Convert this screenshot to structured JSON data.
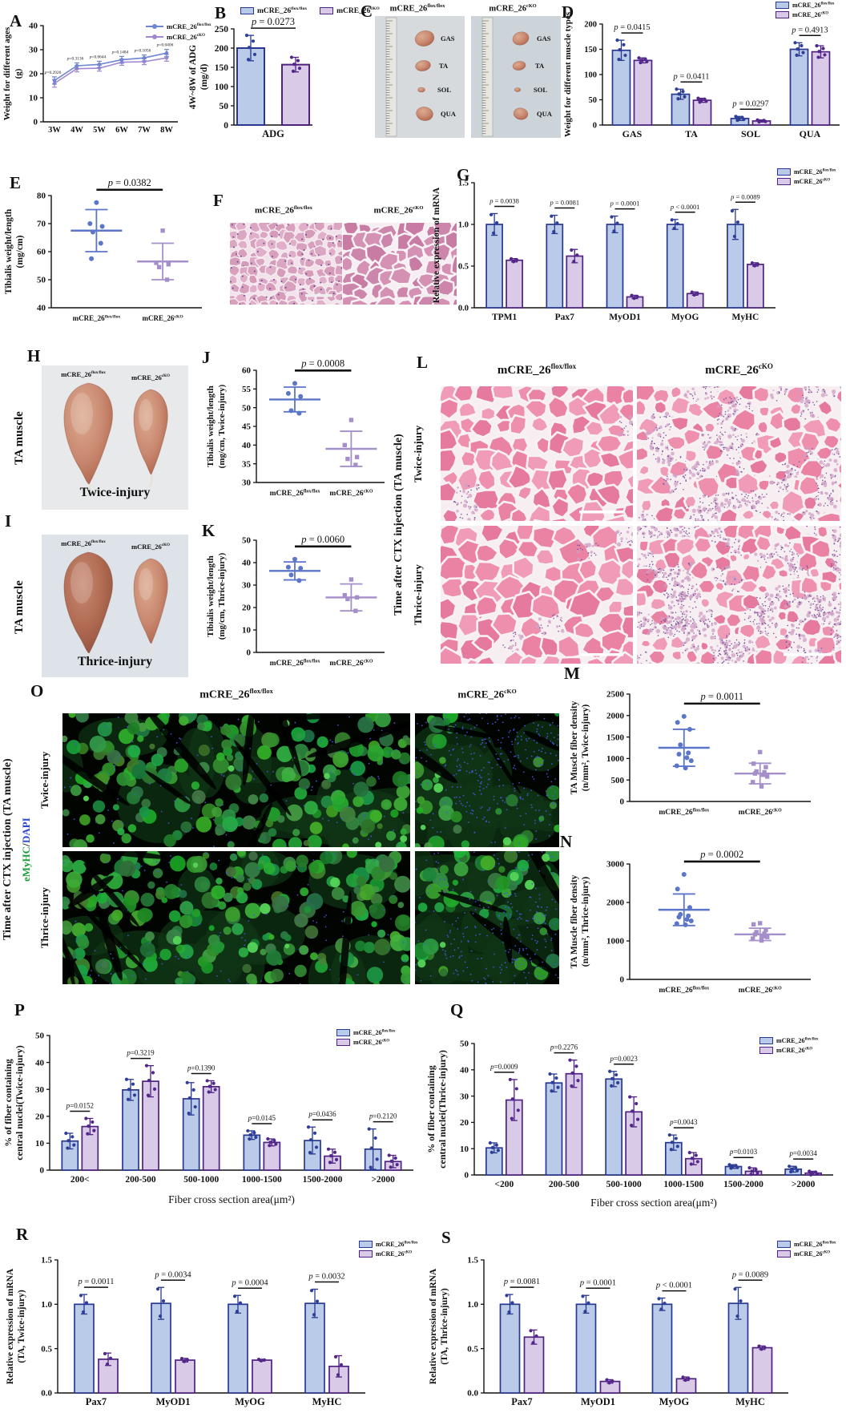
{
  "colors": {
    "flox_fill": "#b9cbe8",
    "flox_stroke": "#283891",
    "flox_dot": "#2e3f97",
    "cko_fill": "#d9cbe8",
    "cko_stroke": "#4f2180",
    "cko_dot": "#53268c",
    "line_flox": "#6d86cf",
    "line_cko": "#a287d1",
    "scatter_flox": "#5b76c9",
    "scatter_cko": "#a58fcb",
    "stain_green": "#1d9e3a",
    "stain_blue": "#2b46cf"
  },
  "legend": {
    "flox": {
      "base": "mCRE_26",
      "sup": "flox/flox"
    },
    "cko": {
      "base": "mCRE_26",
      "sup": "cKO"
    }
  },
  "panels": {
    "a": {
      "letter": "A"
    },
    "b": {
      "letter": "B"
    },
    "c": {
      "letter": "C",
      "muscles": [
        "GAS",
        "TA",
        "SOL",
        "QUA"
      ]
    },
    "d": {
      "letter": "D"
    },
    "e": {
      "letter": "E"
    },
    "f": {
      "letter": "F"
    },
    "g": {
      "letter": "G"
    },
    "h": {
      "letter": "H",
      "side": "TA muscle",
      "caption": "Twice-injury"
    },
    "i": {
      "letter": "I",
      "side": "TA muscle",
      "caption": "Thrice-injury"
    },
    "j": {
      "letter": "J"
    },
    "k": {
      "letter": "K"
    },
    "l": {
      "letter": "L",
      "side": "Time after CTX injection (TA muscle)",
      "row1": "Twice-injury",
      "row2": "Thrice-injury"
    },
    "m": {
      "letter": "M"
    },
    "n": {
      "letter": "N"
    },
    "o": {
      "letter": "O",
      "side": "Time after CTX injection (TA muscle)",
      "stain_green": "eMyHC",
      "stain_sep": "/",
      "stain_blue": "DAPI",
      "row1": "Twice-injury",
      "row2": "Thrice-injury"
    },
    "p": {
      "letter": "P"
    },
    "q": {
      "letter": "Q"
    },
    "r": {
      "letter": "R"
    },
    "s": {
      "letter": "S"
    }
  },
  "chart_data": [
    {
      "id": "A",
      "type": "line",
      "title": "",
      "ylabel": [
        "Weight for different ages",
        "(g)"
      ],
      "x": [
        "3W",
        "4W",
        "5W",
        "6W",
        "7W",
        "8W"
      ],
      "ylim": [
        0,
        40
      ],
      "yticks": [
        0,
        10,
        20,
        30,
        40
      ],
      "series": [
        {
          "name": "mCRE_26flox/flox",
          "values": [
            17.2,
            23.3,
            23.9,
            25.8,
            26.6,
            28.6
          ],
          "err": [
            1.5,
            1.2,
            1.3,
            1.4,
            1.2,
            1.5
          ]
        },
        {
          "name": "mCRE_26cKO",
          "values": [
            16.0,
            22.1,
            22.3,
            24.8,
            25.0,
            26.6
          ],
          "err": [
            1.6,
            1.3,
            1.2,
            1.3,
            1.2,
            1.4
          ]
        }
      ],
      "p_values": [
        "p=0.2926",
        "p=0.3136",
        "p=0.0644",
        "p=0.1484",
        "p=0.1056",
        "p=0.0406"
      ]
    },
    {
      "id": "B",
      "type": "bar",
      "ylabel": [
        "4W~8W of ADG",
        "(mg/d)"
      ],
      "categories": [
        "ADG"
      ],
      "ylim": [
        0,
        250
      ],
      "yticks": [
        0,
        50,
        100,
        150,
        200,
        250
      ],
      "series": [
        {
          "name": "mCRE_26flox/flox",
          "values": [
            200
          ],
          "err": [
            33
          ]
        },
        {
          "name": "mCRE_26cKO",
          "values": [
            157
          ],
          "err": [
            19
          ]
        }
      ],
      "p_values": [
        "p = 0.0273"
      ]
    },
    {
      "id": "D",
      "type": "bar",
      "ylabel": [
        "Weight for different muscle types"
      ],
      "categories": [
        "GAS",
        "TA",
        "SOL",
        "QUA"
      ],
      "ylim": [
        0,
        200
      ],
      "yticks": [
        0,
        50,
        100,
        150,
        200
      ],
      "series": [
        {
          "name": "mCRE_26flox/flox",
          "values": [
            148,
            61,
            13,
            150
          ],
          "err": [
            20,
            10,
            4,
            13
          ]
        },
        {
          "name": "mCRE_26cKO",
          "values": [
            128,
            49,
            8,
            145
          ],
          "err": [
            5,
            4,
            2,
            12
          ]
        }
      ],
      "p_values": [
        "p = 0.0415",
        "p = 0.0411",
        "p = 0.0297",
        "p = 0.4913"
      ]
    },
    {
      "id": "E",
      "type": "scatter",
      "ylabel": [
        "Tibialis weight/length",
        "(mg/cm)"
      ],
      "ylim": [
        40,
        80
      ],
      "yticks": [
        40,
        50,
        60,
        70,
        80
      ],
      "p": "p = 0.0382",
      "groups": [
        {
          "name": "mCRE_26flox/flox",
          "mean": 67.5,
          "sd": 7.5,
          "points": [
            77.5,
            70,
            69,
            67,
            63,
            57.5
          ]
        },
        {
          "name": "mCRE_26cKO",
          "mean": 56.5,
          "sd": 6.5,
          "points": [
            67.5,
            56,
            55.5,
            54.5,
            50
          ]
        }
      ]
    },
    {
      "id": "G",
      "type": "bar",
      "ylabel": [
        "Relative expression of mRNA"
      ],
      "categories": [
        "TPM1",
        "Pax7",
        "MyOD1",
        "MyOG",
        "MyHC"
      ],
      "ylim": [
        0,
        1.5
      ],
      "yticks": [
        0,
        0.5,
        1,
        1.5
      ],
      "ytick_decimals": 1,
      "series": [
        {
          "name": "mCRE_26flox/flox",
          "values": [
            1.0,
            1.0,
            1.0,
            1.0,
            1.0
          ],
          "err": [
            0.13,
            0.11,
            0.1,
            0.06,
            0.18
          ]
        },
        {
          "name": "mCRE_26cKO",
          "values": [
            0.57,
            0.62,
            0.13,
            0.17,
            0.52
          ],
          "err": [
            0.02,
            0.08,
            0.02,
            0.02,
            0.02
          ]
        }
      ],
      "p_values": [
        "p = 0.0038",
        "p = 0.0081",
        "p = 0.0001",
        "p < 0.0001",
        "p = 0.0089"
      ]
    },
    {
      "id": "J",
      "type": "scatter",
      "ylabel": [
        "Tibialis weight/length",
        "(mg/cm, Twice-injury)"
      ],
      "ylim": [
        30,
        60
      ],
      "yticks": [
        30,
        35,
        40,
        45,
        50,
        55,
        60
      ],
      "p": "p = 0.0008",
      "groups": [
        {
          "name": "mCRE_26flox/flox",
          "mean": 52.2,
          "sd": 3.3,
          "points": [
            56.5,
            53.8,
            53,
            49.2,
            48.5
          ]
        },
        {
          "name": "mCRE_26cKO",
          "mean": 39,
          "sd": 4.7,
          "points": [
            46.7,
            40,
            36.8,
            36.3,
            34.7
          ]
        }
      ]
    },
    {
      "id": "K",
      "type": "scatter",
      "ylabel": [
        "Tibialis weight/length",
        "(mg/cm, Thrice-injury)"
      ],
      "ylim": [
        0,
        50
      ],
      "yticks": [
        0,
        10,
        20,
        30,
        40,
        50
      ],
      "p": "p = 0.0060",
      "groups": [
        {
          "name": "mCRE_26flox/flox",
          "mean": 36.3,
          "sd": 4,
          "points": [
            41.5,
            38,
            37.5,
            34.5,
            32
          ]
        },
        {
          "name": "mCRE_26cKO",
          "mean": 24.5,
          "sd": 6,
          "points": [
            32.5,
            25.5,
            24.5,
            23.8,
            18.5
          ]
        }
      ]
    },
    {
      "id": "M",
      "type": "scatter",
      "ylabel": [
        "TA Muscle fiber density",
        "(n/mm², Twice-injury)"
      ],
      "ylim": [
        0,
        2500
      ],
      "yticks": [
        0,
        500,
        1000,
        1500,
        2000,
        2500
      ],
      "p": "p = 0.0011",
      "groups": [
        {
          "name": "mCRE_26flox/flox",
          "mean": 1250,
          "sd": 430,
          "points": [
            1980,
            1840,
            1680,
            1320,
            1130,
            1100,
            1020,
            950,
            830,
            780
          ]
        },
        {
          "name": "mCRE_26cKO",
          "mean": 650,
          "sd": 240,
          "points": [
            1150,
            880,
            800,
            700,
            680,
            650,
            620,
            580,
            450,
            350
          ]
        }
      ]
    },
    {
      "id": "N",
      "type": "scatter",
      "ylabel": [
        "TA Muscle fiber density",
        "(n/mm², Thrice-injury)"
      ],
      "ylim": [
        0,
        3000
      ],
      "yticks": [
        0,
        1000,
        2000,
        3000
      ],
      "p": "p = 0.0002",
      "groups": [
        {
          "name": "mCRE_26flox/flox",
          "mean": 1810,
          "sd": 410,
          "points": [
            2730,
            2350,
            1870,
            1690,
            1650,
            1620,
            1560,
            1520,
            1450,
            1420
          ]
        },
        {
          "name": "mCRE_26cKO",
          "mean": 1170,
          "sd": 160,
          "points": [
            1460,
            1430,
            1280,
            1230,
            1190,
            1170,
            1120,
            1100,
            1060,
            1010
          ]
        }
      ]
    },
    {
      "id": "P",
      "type": "bar",
      "ylabel": [
        "% of fiber containing",
        "central nuclei(Twice-injury)"
      ],
      "xlabel": "Fiber cross section area(μm²)",
      "categories": [
        "200<",
        "200-500",
        "500-1000",
        "1000-1500",
        "1500-2000",
        ">2000"
      ],
      "ylim": [
        0,
        50
      ],
      "yticks": [
        0,
        10,
        20,
        30,
        40,
        50
      ],
      "series": [
        {
          "name": "mCRE_26flox/flox",
          "values": [
            10.8,
            29.8,
            26.5,
            13,
            11,
            7.8
          ],
          "err": [
            2.9,
            3.9,
            6,
            1.6,
            5,
            7.5
          ]
        },
        {
          "name": "mCRE_26cKO",
          "values": [
            16.2,
            33,
            31,
            10.3,
            5.2,
            3.2
          ],
          "err": [
            3,
            5.8,
            2.2,
            1.3,
            2.6,
            2.3
          ]
        }
      ],
      "p_values": [
        "p=0.0152",
        "p=0.3219",
        "p=0.1390",
        "p=0.0145",
        "p=0.0436",
        "p=0.2120"
      ]
    },
    {
      "id": "Q",
      "type": "bar",
      "ylabel": [
        "% of fiber containing",
        "central nuclei(Thrice-injury)"
      ],
      "xlabel": "Fiber cross section area(μm²)",
      "categories": [
        "<200",
        "200-500",
        "500-1000",
        "1000-1500",
        "1500-2000",
        ">2000"
      ],
      "ylim": [
        0,
        50
      ],
      "yticks": [
        0,
        10,
        20,
        30,
        40,
        50
      ],
      "series": [
        {
          "name": "mCRE_26flox/flox",
          "values": [
            10.3,
            35,
            36.5,
            12.3,
            3.2,
            2.2
          ],
          "err": [
            1.9,
            3.4,
            2.9,
            2.9,
            0.7,
            1.1
          ]
        },
        {
          "name": "mCRE_26cKO",
          "values": [
            28.5,
            38.5,
            24,
            6.2,
            1.4,
            0.7
          ],
          "err": [
            7.8,
            5.2,
            5.7,
            2.3,
            1.3,
            0.7
          ]
        }
      ],
      "p_values": [
        "p=0.0009",
        "p=0.2276",
        "p=0.0023",
        "p=0.0043",
        "p=0.0103",
        "p=0.0034"
      ]
    },
    {
      "id": "R",
      "type": "bar",
      "ylabel": [
        "Relative expression of mRNA",
        "(TA, Twice-injury)"
      ],
      "categories": [
        "Pax7",
        "MyOD1",
        "MyOG",
        "MyHC"
      ],
      "ylim": [
        0,
        1.5
      ],
      "yticks": [
        0,
        0.5,
        1,
        1.5
      ],
      "ytick_decimals": 1,
      "series": [
        {
          "name": "mCRE_26flox/flox",
          "values": [
            1.0,
            1.01,
            1.0,
            1.01
          ],
          "err": [
            0.11,
            0.18,
            0.1,
            0.16
          ]
        },
        {
          "name": "mCRE_26cKO",
          "values": [
            0.38,
            0.37,
            0.37,
            0.3
          ],
          "err": [
            0.07,
            0.02,
            0.01,
            0.12
          ]
        }
      ],
      "p_values": [
        "p = 0.0011",
        "p = 0.0034",
        "p = 0.0004",
        "p = 0.0032"
      ]
    },
    {
      "id": "S",
      "type": "bar",
      "ylabel": [
        "Relative expression of mRNA",
        "(TA, Thrice-injury)"
      ],
      "categories": [
        "Pax7",
        "MyOD1",
        "MyOG",
        "MyHC"
      ],
      "ylim": [
        0,
        1.5
      ],
      "yticks": [
        0,
        0.5,
        1,
        1.5
      ],
      "ytick_decimals": 1,
      "series": [
        {
          "name": "mCRE_26flox/flox",
          "values": [
            1.0,
            1.0,
            1.0,
            1.01
          ],
          "err": [
            0.11,
            0.1,
            0.07,
            0.18
          ]
        },
        {
          "name": "mCRE_26cKO",
          "values": [
            0.63,
            0.13,
            0.16,
            0.51
          ],
          "err": [
            0.08,
            0.02,
            0.02,
            0.02
          ]
        }
      ],
      "p_values": [
        "p = 0.0081",
        "p = 0.0001",
        "p < 0.0001",
        "p = 0.0089"
      ]
    }
  ]
}
